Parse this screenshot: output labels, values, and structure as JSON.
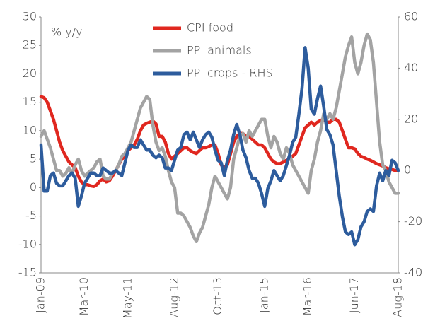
{
  "chart_data": {
    "type": "line",
    "annotations": [
      "% y/y"
    ],
    "categories": [
      "Jan-09",
      null,
      null,
      null,
      null,
      null,
      null,
      null,
      null,
      null,
      null,
      null,
      null,
      null,
      "Mar-10",
      null,
      null,
      null,
      null,
      null,
      null,
      null,
      null,
      null,
      null,
      null,
      null,
      null,
      "May-11",
      null,
      null,
      null,
      null,
      null,
      null,
      null,
      null,
      null,
      null,
      null,
      null,
      null,
      null,
      "Aug-12",
      null,
      null,
      null,
      null,
      null,
      null,
      null,
      null,
      null,
      null,
      null,
      null,
      null,
      "Oct-13",
      null,
      null,
      null,
      null,
      null,
      null,
      null,
      null,
      null,
      null,
      null,
      null,
      null,
      null,
      "Jan-15",
      null,
      null,
      null,
      null,
      null,
      null,
      null,
      null,
      null,
      null,
      null,
      null,
      null,
      "Mar-16",
      null,
      null,
      null,
      null,
      null,
      null,
      null,
      null,
      null,
      null,
      null,
      null,
      null,
      null,
      "Jun-17",
      null,
      null,
      null,
      null,
      null,
      null,
      null,
      null,
      null,
      null,
      null,
      null,
      null,
      "Aug-18"
    ],
    "series": [
      {
        "name": "CPI food",
        "color": "#e0271f",
        "values": [
          16,
          15.8,
          15,
          13.5,
          12,
          10,
          8,
          6.5,
          5.5,
          4.5,
          4,
          3.5,
          2,
          1,
          0.5,
          0.5,
          0.3,
          0.2,
          0.5,
          1.2,
          1.5,
          1,
          1.2,
          2,
          3,
          4,
          5,
          5.5,
          6.5,
          7,
          7.5,
          8.5,
          10,
          11,
          11.3,
          11.5,
          11.7,
          11.2,
          9,
          9,
          8,
          6,
          5,
          5.5,
          6,
          6.5,
          7,
          7,
          6.5,
          6.2,
          6,
          6.5,
          7,
          7,
          7.2,
          7.5,
          7.5,
          6,
          4,
          3.5,
          4,
          6,
          8,
          9,
          9.5,
          9.5,
          9,
          9,
          8.5,
          8,
          7.5,
          7.5,
          7,
          6,
          5,
          4.5,
          4.2,
          4.2,
          4.5,
          4.8,
          5,
          5.5,
          6,
          7.5,
          9,
          10.5,
          11,
          11.5,
          11,
          11.5,
          11.8,
          12,
          11.5,
          11.5,
          12,
          12,
          11.5,
          10,
          8.5,
          7,
          7,
          6.8,
          6,
          5.5,
          5.3,
          5,
          4.8,
          4.5,
          4.2,
          4,
          3.8,
          3.5,
          3.3,
          3.2,
          3,
          3
        ]
      },
      {
        "name": "PPI animals",
        "color": "#a3a3a3",
        "values": [
          9,
          10,
          8.5,
          7,
          5,
          3,
          3,
          2,
          2.5,
          3.5,
          2.5,
          4,
          5,
          3,
          2,
          2.5,
          3,
          3.5,
          4.5,
          5,
          2,
          1.5,
          1.5,
          2.5,
          3,
          4,
          5.5,
          6,
          7,
          8,
          10,
          12,
          14,
          15,
          16,
          15.5,
          11,
          8,
          6.5,
          7,
          5.5,
          3,
          1,
          0,
          -4.5,
          -4.5,
          -5,
          -6,
          -7,
          -8.5,
          -9.5,
          -8,
          -7,
          -5,
          -3,
          0,
          2,
          1,
          0,
          -1,
          -2,
          0,
          5,
          7,
          9,
          9.5,
          8,
          10,
          9,
          10,
          11,
          12,
          12,
          9,
          7,
          9,
          8,
          6,
          5,
          7,
          6,
          4,
          3,
          2,
          1,
          0,
          -1,
          3,
          5,
          8,
          10,
          13,
          12,
          13,
          12,
          14,
          17,
          20,
          23,
          25,
          26.5,
          22,
          20,
          22,
          25,
          27,
          26,
          22,
          15,
          8,
          4,
          3,
          1,
          0,
          -1,
          -1
        ]
      },
      {
        "name": "PPI crops - RHS",
        "color": "#2d5c9d",
        "axis": "y2",
        "values": [
          10,
          -8,
          -8,
          -2,
          -1,
          -5,
          -6,
          -6,
          -4,
          -2,
          -1,
          -3,
          -14,
          -10,
          -5,
          -3,
          -1,
          -1,
          -2,
          -2,
          1,
          0,
          -1,
          -1,
          0,
          -1,
          -2,
          3,
          8,
          10,
          9,
          9,
          12,
          10,
          8,
          8,
          6,
          5,
          6,
          5,
          1,
          1,
          0,
          4,
          8,
          9,
          14,
          15,
          12,
          15,
          12,
          9,
          12,
          14,
          15,
          13,
          8,
          4,
          3,
          -2,
          4,
          8,
          14,
          18,
          14,
          8,
          5,
          0,
          -3,
          -3,
          -5,
          -9,
          -14,
          -7,
          -4,
          0,
          -2,
          -4,
          -2,
          2,
          6,
          11,
          13,
          22,
          32,
          48,
          40,
          24,
          22,
          28,
          33,
          25,
          16,
          14,
          10,
          0,
          -10,
          -18,
          -24,
          -25,
          -24,
          -29,
          -27,
          -22,
          -20,
          -16,
          -15,
          -16,
          -6,
          -1,
          -4,
          0,
          -2,
          4,
          3,
          0
        ]
      }
    ],
    "ylim": [
      -15,
      30
    ],
    "yticks": [
      -15,
      -10,
      -5,
      0,
      5,
      10,
      15,
      20,
      25,
      30
    ],
    "y2lim": [
      -40,
      60
    ],
    "y2ticks": [
      -40,
      -20,
      0,
      20,
      40,
      60
    ],
    "legend": "top"
  }
}
